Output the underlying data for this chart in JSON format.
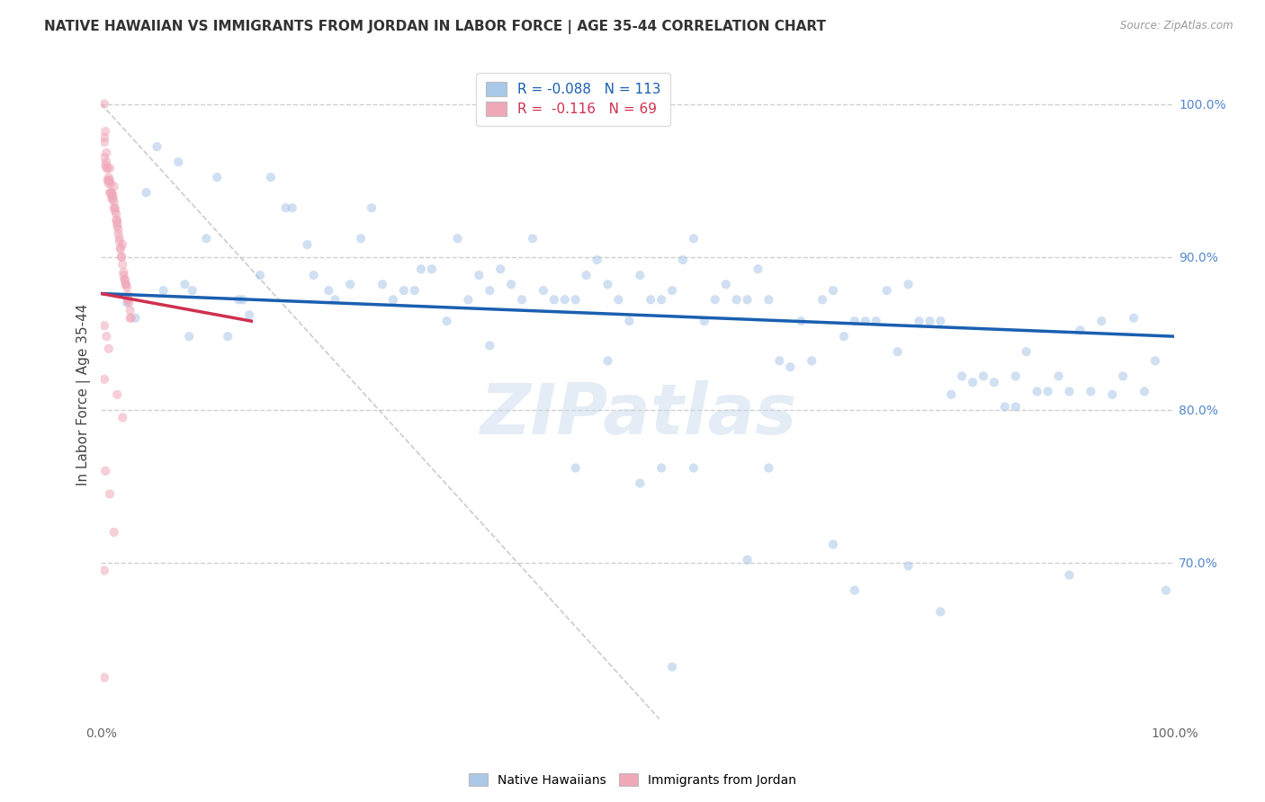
{
  "title": "NATIVE HAWAIIAN VS IMMIGRANTS FROM JORDAN IN LABOR FORCE | AGE 35-44 CORRELATION CHART",
  "source": "Source: ZipAtlas.com",
  "ylabel": "In Labor Force | Age 35-44",
  "ytick_labels": [
    "100.0%",
    "90.0%",
    "80.0%",
    "70.0%"
  ],
  "ytick_values": [
    1.0,
    0.9,
    0.8,
    0.7
  ],
  "xlim": [
    0.0,
    1.0
  ],
  "ylim": [
    0.595,
    1.025
  ],
  "blue_color": "#aac8e8",
  "pink_color": "#f0a8b8",
  "blue_line_color": "#1a5fb0",
  "pink_line_color": "#d03050",
  "ref_line_color": "#cccccc",
  "legend_R_blue": "R = -0.088",
  "legend_N_blue": "N = 113",
  "legend_R_pink": "R =  -0.116",
  "legend_N_pink": "N = 69",
  "watermark": "ZIPatlas",
  "blue_x": [
    0.024,
    0.058,
    0.085,
    0.098,
    0.042,
    0.072,
    0.078,
    0.118,
    0.138,
    0.158,
    0.178,
    0.148,
    0.128,
    0.192,
    0.212,
    0.108,
    0.232,
    0.252,
    0.198,
    0.272,
    0.298,
    0.218,
    0.282,
    0.332,
    0.262,
    0.352,
    0.308,
    0.292,
    0.372,
    0.402,
    0.382,
    0.362,
    0.322,
    0.342,
    0.422,
    0.452,
    0.412,
    0.432,
    0.482,
    0.442,
    0.502,
    0.462,
    0.522,
    0.472,
    0.552,
    0.532,
    0.492,
    0.572,
    0.602,
    0.582,
    0.542,
    0.562,
    0.512,
    0.622,
    0.652,
    0.632,
    0.592,
    0.612,
    0.672,
    0.702,
    0.682,
    0.642,
    0.662,
    0.722,
    0.752,
    0.732,
    0.692,
    0.712,
    0.782,
    0.802,
    0.762,
    0.742,
    0.772,
    0.832,
    0.852,
    0.822,
    0.792,
    0.812,
    0.882,
    0.902,
    0.872,
    0.842,
    0.862,
    0.932,
    0.952,
    0.922,
    0.892,
    0.912,
    0.972,
    0.982,
    0.942,
    0.962,
    0.032,
    0.052,
    0.172,
    0.242,
    0.392,
    0.082,
    0.132,
    0.602,
    0.522,
    0.442,
    0.502,
    0.552,
    0.702,
    0.752,
    0.362,
    0.472,
    0.622,
    0.682,
    0.852,
    0.902,
    0.532,
    0.782,
    0.992
  ],
  "blue_y": [
    0.87,
    0.878,
    0.878,
    0.912,
    0.942,
    0.962,
    0.882,
    0.848,
    0.862,
    0.952,
    0.932,
    0.888,
    0.872,
    0.908,
    0.878,
    0.952,
    0.882,
    0.932,
    0.888,
    0.872,
    0.892,
    0.872,
    0.878,
    0.912,
    0.882,
    0.888,
    0.892,
    0.878,
    0.892,
    0.912,
    0.882,
    0.878,
    0.858,
    0.872,
    0.872,
    0.888,
    0.878,
    0.872,
    0.872,
    0.872,
    0.888,
    0.898,
    0.872,
    0.882,
    0.912,
    0.878,
    0.858,
    0.872,
    0.872,
    0.882,
    0.898,
    0.858,
    0.872,
    0.872,
    0.858,
    0.832,
    0.872,
    0.892,
    0.872,
    0.858,
    0.878,
    0.828,
    0.832,
    0.858,
    0.882,
    0.878,
    0.848,
    0.858,
    0.858,
    0.822,
    0.858,
    0.838,
    0.858,
    0.818,
    0.822,
    0.822,
    0.81,
    0.818,
    0.812,
    0.812,
    0.812,
    0.802,
    0.838,
    0.858,
    0.822,
    0.812,
    0.822,
    0.852,
    0.812,
    0.832,
    0.81,
    0.86,
    0.86,
    0.972,
    0.932,
    0.912,
    0.872,
    0.848,
    0.872,
    0.702,
    0.762,
    0.762,
    0.752,
    0.762,
    0.682,
    0.698,
    0.842,
    0.832,
    0.762,
    0.712,
    0.802,
    0.692,
    0.632,
    0.668,
    0.682
  ],
  "pink_x": [
    0.003,
    0.004,
    0.005,
    0.006,
    0.007,
    0.008,
    0.009,
    0.01,
    0.011,
    0.012,
    0.013,
    0.014,
    0.015,
    0.016,
    0.017,
    0.018,
    0.019,
    0.02,
    0.021,
    0.022,
    0.023,
    0.024,
    0.025,
    0.026,
    0.027,
    0.028,
    0.003,
    0.005,
    0.008,
    0.012,
    0.02,
    0.025,
    0.003,
    0.007,
    0.01,
    0.015,
    0.003,
    0.005,
    0.007,
    0.009,
    0.011,
    0.013,
    0.015,
    0.017,
    0.019,
    0.021,
    0.023,
    0.025,
    0.027,
    0.004,
    0.006,
    0.008,
    0.01,
    0.012,
    0.014,
    0.016,
    0.018,
    0.022,
    0.003,
    0.005,
    0.007,
    0.003,
    0.015,
    0.02,
    0.004,
    0.008,
    0.012,
    0.003,
    0.003
  ],
  "pink_y": [
    1.0,
    0.982,
    0.962,
    0.958,
    0.952,
    0.95,
    0.948,
    0.942,
    0.94,
    0.936,
    0.932,
    0.928,
    0.924,
    0.918,
    0.912,
    0.906,
    0.9,
    0.895,
    0.89,
    0.885,
    0.882,
    0.88,
    0.875,
    0.87,
    0.865,
    0.86,
    0.978,
    0.968,
    0.958,
    0.946,
    0.908,
    0.872,
    0.975,
    0.95,
    0.94,
    0.92,
    0.965,
    0.958,
    0.948,
    0.942,
    0.938,
    0.93,
    0.922,
    0.91,
    0.9,
    0.888,
    0.882,
    0.872,
    0.86,
    0.96,
    0.95,
    0.942,
    0.938,
    0.932,
    0.924,
    0.915,
    0.905,
    0.885,
    0.855,
    0.848,
    0.84,
    0.82,
    0.81,
    0.795,
    0.76,
    0.745,
    0.72,
    0.695,
    0.625
  ],
  "blue_trend_x": [
    0.0,
    1.0
  ],
  "blue_trend_y": [
    0.876,
    0.848
  ],
  "pink_trend_x": [
    0.0,
    0.14
  ],
  "pink_trend_y": [
    0.876,
    0.858
  ],
  "ref_line_x": [
    0.0,
    0.52
  ],
  "ref_line_y": [
    1.0,
    0.598
  ],
  "dot_size": 55,
  "dot_alpha": 0.55,
  "background_color": "#ffffff",
  "grid_color": "#d0d0d0",
  "title_fontsize": 11,
  "axis_label_fontsize": 11,
  "tick_fontsize": 10,
  "legend_fontsize": 11
}
